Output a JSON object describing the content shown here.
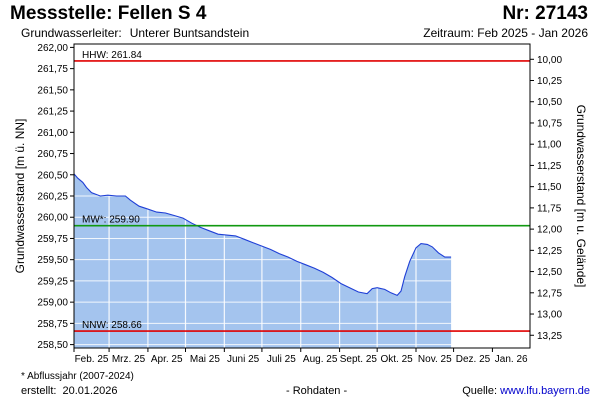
{
  "header": {
    "title": "Messstelle: Fellen S 4",
    "number": "Nr: 27143",
    "aquifer_label": "Grundwasserleiter:",
    "aquifer_value": "Unterer Buntsandstein",
    "period": "Zeitraum: Feb 2025 - Jan 2026"
  },
  "footer": {
    "note": "* Abflussjahr (2007-2024)",
    "created_label": "erstellt:",
    "created_date": "20.01.2026",
    "raw_data": "- Rohdaten -",
    "source_label": "Quelle:",
    "source_link": "www.lfu.bayern.de"
  },
  "colors": {
    "fill": "#a4c4ee",
    "line": "#1f3fd6",
    "hhw": "#e00000",
    "nnw": "#e00000",
    "mw": "#119911",
    "grid": "#ffffff"
  },
  "chart_data": {
    "type": "area",
    "ylabel": "Grundwasserstand [m ü. NN]",
    "ylabel_right": "Grundwasserstand [m u. Gelände]",
    "ylim": [
      258.46,
      262.04
    ],
    "y_ticks": [
      "262,00",
      "261,75",
      "261,50",
      "261,25",
      "261,00",
      "260,75",
      "260,50",
      "260,25",
      "260,00",
      "259,75",
      "259,50",
      "259,25",
      "259,00",
      "258,75",
      "258,50"
    ],
    "y_ticks_right": [
      "10,00",
      "10,25",
      "10,50",
      "10,75",
      "11,00",
      "11,25",
      "11,50",
      "11,75",
      "12,00",
      "12,25",
      "12,50",
      "12,75",
      "13,00",
      "13,25"
    ],
    "right_axis_ref": {
      "left_value": 261.86,
      "right_value": 10.0
    },
    "x_ticks": [
      "Feb. 25",
      "Mrz. 25",
      "Apr. 25",
      "Mai 25",
      "Juni 25",
      "Juli 25",
      "Aug. 25",
      "Sept. 25",
      "Okt. 25",
      "Nov. 25",
      "Dez. 25",
      "Jan. 26"
    ],
    "x_start": "2025-02-01",
    "x_end": "2026-01-31",
    "reference_lines": [
      {
        "key": "hhw",
        "label": "HHW: 261.84",
        "value": 261.84
      },
      {
        "key": "mw",
        "label": "MW*: 259.90",
        "value": 259.9
      },
      {
        "key": "nnw",
        "label": "NNW: 258.66",
        "value": 258.66
      }
    ],
    "series": [
      {
        "values": [
          [
            "2025-02-01",
            260.51
          ],
          [
            "2025-02-04",
            260.46
          ],
          [
            "2025-02-08",
            260.41
          ],
          [
            "2025-02-11",
            260.35
          ],
          [
            "2025-02-15",
            260.29
          ],
          [
            "2025-02-22",
            260.25
          ],
          [
            "2025-02-28",
            260.26
          ],
          [
            "2025-03-07",
            260.25
          ],
          [
            "2025-03-14",
            260.25
          ],
          [
            "2025-03-18",
            260.2
          ],
          [
            "2025-03-25",
            260.13
          ],
          [
            "2025-03-31",
            260.1
          ],
          [
            "2025-04-08",
            260.06
          ],
          [
            "2025-04-15",
            260.05
          ],
          [
            "2025-04-22",
            260.02
          ],
          [
            "2025-04-29",
            259.99
          ],
          [
            "2025-05-06",
            259.93
          ],
          [
            "2025-05-13",
            259.88
          ],
          [
            "2025-05-20",
            259.84
          ],
          [
            "2025-05-27",
            259.8
          ],
          [
            "2025-06-03",
            259.79
          ],
          [
            "2025-06-10",
            259.78
          ],
          [
            "2025-06-17",
            259.74
          ],
          [
            "2025-06-24",
            259.7
          ],
          [
            "2025-07-01",
            259.66
          ],
          [
            "2025-07-08",
            259.62
          ],
          [
            "2025-07-15",
            259.57
          ],
          [
            "2025-07-22",
            259.53
          ],
          [
            "2025-07-29",
            259.48
          ],
          [
            "2025-08-05",
            259.44
          ],
          [
            "2025-08-12",
            259.4
          ],
          [
            "2025-08-19",
            259.35
          ],
          [
            "2025-08-26",
            259.29
          ],
          [
            "2025-09-02",
            259.22
          ],
          [
            "2025-09-09",
            259.17
          ],
          [
            "2025-09-16",
            259.12
          ],
          [
            "2025-09-23",
            259.1
          ],
          [
            "2025-09-27",
            259.16
          ],
          [
            "2025-10-01",
            259.17
          ],
          [
            "2025-10-07",
            259.15
          ],
          [
            "2025-10-12",
            259.11
          ],
          [
            "2025-10-17",
            259.08
          ],
          [
            "2025-10-20",
            259.13
          ],
          [
            "2025-10-23",
            259.3
          ],
          [
            "2025-10-27",
            259.48
          ],
          [
            "2025-11-01",
            259.64
          ],
          [
            "2025-11-05",
            259.69
          ],
          [
            "2025-11-10",
            259.68
          ],
          [
            "2025-11-14",
            259.65
          ],
          [
            "2025-11-19",
            259.58
          ],
          [
            "2025-11-24",
            259.53
          ],
          [
            "2025-11-29",
            259.53
          ]
        ]
      }
    ],
    "grid": true
  }
}
